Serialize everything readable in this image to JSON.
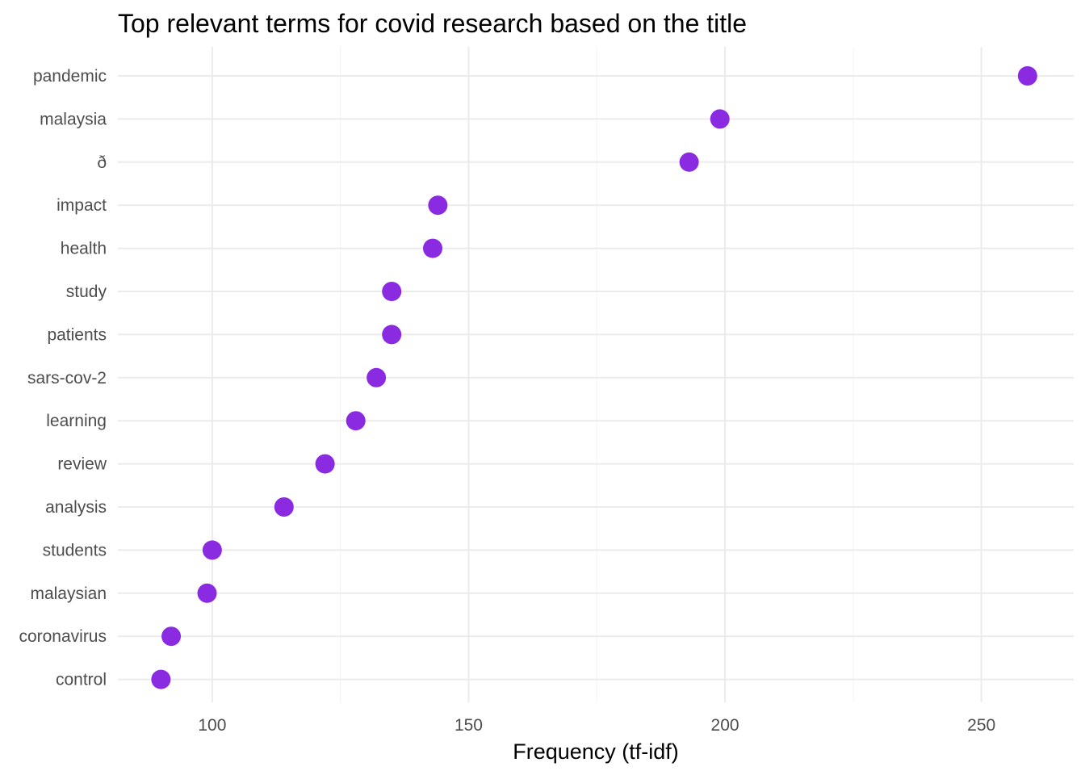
{
  "chart_data": {
    "type": "scatter",
    "title": "Top relevant terms for covid research based on the title",
    "xlabel": "Frequency (tf-idf)",
    "ylabel": "",
    "xlim": [
      81.6,
      268
    ],
    "x_ticks": [
      100,
      150,
      200,
      250
    ],
    "grid": true,
    "legend": "none",
    "point_color": "#8a2be2",
    "categories": [
      "pandemic",
      "malaysia",
      "ð",
      "impact",
      "health",
      "study",
      "patients",
      "sars-cov-2",
      "learning",
      "review",
      "analysis",
      "students",
      "malaysian",
      "coronavirus",
      "control"
    ],
    "values": [
      259,
      199,
      193,
      144,
      143,
      135,
      135,
      132,
      128,
      122,
      114,
      100,
      99,
      92,
      90
    ]
  }
}
